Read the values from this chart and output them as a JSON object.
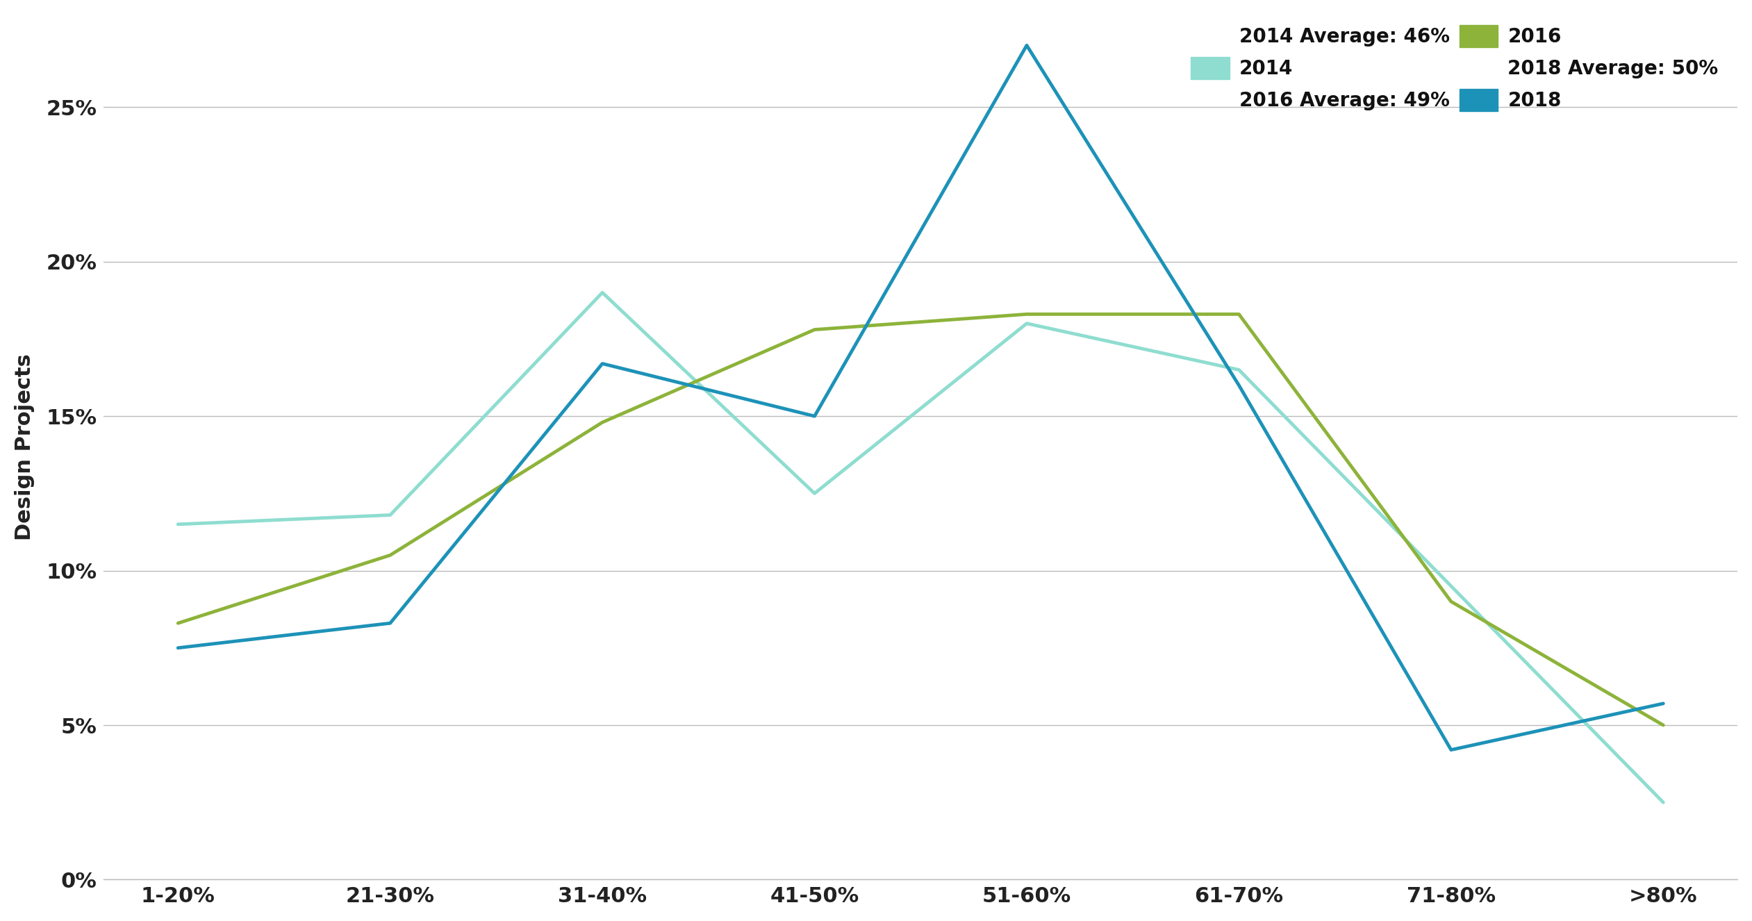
{
  "categories": [
    "1-20%",
    "21-30%",
    "31-40%",
    "41-50%",
    "51-60%",
    "61-70%",
    "71-80%",
    ">80%"
  ],
  "series": {
    "2014": [
      11.5,
      11.8,
      19.0,
      12.5,
      18.0,
      16.5,
      9.5,
      2.5
    ],
    "2016": [
      8.3,
      10.5,
      14.8,
      17.8,
      18.3,
      18.3,
      9.0,
      5.0
    ],
    "2018": [
      7.5,
      8.3,
      16.7,
      15.0,
      27.0,
      16.0,
      4.2,
      5.7
    ]
  },
  "colors": {
    "2014": "#8EDDD0",
    "2016": "#8DB33A",
    "2018": "#1D92B8"
  },
  "legend_text": {
    "2014": "2014 Average: 46%",
    "2016": "2016 Average: 49%",
    "2018": "2018 Average: 50%"
  },
  "legend_year_labels": [
    "2014",
    "2016",
    "2018"
  ],
  "ylabel": "Design Projects",
  "ylim": [
    0,
    28
  ],
  "yticks": [
    0,
    5,
    10,
    15,
    20,
    25
  ],
  "line_width": 3.5,
  "background_color": "#ffffff",
  "grid_color": "#bbbbbb",
  "label_fontsize": 22,
  "tick_fontsize": 22,
  "legend_fontsize": 20
}
